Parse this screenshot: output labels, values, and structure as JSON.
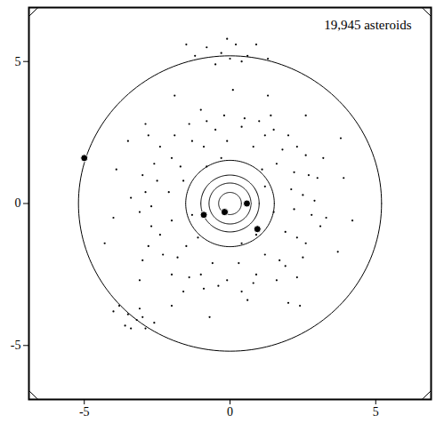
{
  "chart_data": {
    "type": "scatter",
    "title": "19,945 asteroids",
    "xlim": [
      -6.9,
      6.9
    ],
    "ylim": [
      -6.9,
      6.9
    ],
    "xticks": [
      -5,
      0,
      5
    ],
    "yticks": [
      -5,
      0,
      5
    ],
    "grid": false,
    "orbits": [
      0.39,
      0.72,
      1.0,
      1.52,
      5.2,
      9.54
    ],
    "series": [
      {
        "type": "scatter",
        "marker": "point",
        "color": "#000000",
        "x": [
          2.5,
          2.2,
          1.8,
          1.2,
          0.4,
          -0.5,
          -1.3,
          -2.0,
          -2.5,
          -2.7,
          -2.4,
          -1.8,
          -1.0,
          -0.1,
          0.9,
          1.7,
          2.3,
          2.8,
          3.0,
          2.6,
          2.0,
          1.0,
          -0.2,
          -1.4,
          -2.4,
          -3.0,
          -3.1,
          -2.8,
          -2.0,
          -0.9,
          0.4,
          1.6,
          2.5,
          3.1,
          2.1,
          1.6,
          0.8,
          -0.1,
          -0.9,
          -1.7,
          -2.1,
          -2.0,
          -1.5,
          -0.6,
          0.3,
          1.2,
          1.9,
          2.2,
          2.7,
          2.3,
          1.5,
          0.5,
          -0.8,
          -1.9,
          -2.6,
          -2.9,
          -2.7,
          -2.3,
          -1.4,
          -0.4,
          0.8,
          1.9,
          2.6,
          2.9,
          3.2,
          1.4,
          -1.0,
          -2.8,
          -3.4,
          -3.0,
          -1.6,
          0.6,
          2.3,
          3.3,
          3.9,
          2.6,
          0.1,
          -2.9,
          -4.0,
          -3.1,
          -0.7,
          2.0,
          3.7,
          1.3,
          -3.9,
          -2.0,
          -0.3,
          0.2,
          -0.8,
          0.6,
          -0.1,
          0.4,
          -1.2,
          0.9,
          -0.5,
          0.0,
          -1.5,
          1.3,
          -3.2,
          -3.5,
          -2.9,
          -3.8,
          -3.0,
          -3.4,
          -2.6,
          -4.0,
          -3.6,
          -3.1,
          1.2,
          -0.8,
          -1.3,
          0.4,
          1.5,
          -0.3,
          1.1,
          -1.6,
          0.9,
          -1.1,
          3.8,
          -3.5,
          4.2,
          -1.9,
          2.4,
          -4.3
        ],
        "y": [
          0.3,
          1.1,
          1.9,
          2.4,
          2.7,
          2.6,
          2.2,
          1.6,
          0.8,
          -0.1,
          -1.1,
          -1.9,
          -2.5,
          -2.7,
          -2.5,
          -2.0,
          -1.2,
          -0.4,
          0.9,
          1.7,
          2.4,
          2.9,
          3.1,
          2.8,
          2.0,
          1.0,
          -0.3,
          -1.5,
          -2.5,
          -3.0,
          -3.1,
          -2.7,
          -1.9,
          -0.8,
          0.5,
          1.4,
          2.0,
          2.2,
          2.0,
          1.3,
          0.4,
          -0.6,
          -1.5,
          -2.1,
          -2.1,
          -1.8,
          -1.0,
          -0.2,
          1.0,
          2.0,
          2.6,
          3.0,
          2.9,
          2.4,
          1.4,
          0.4,
          -0.8,
          -1.8,
          -2.6,
          -2.9,
          -2.8,
          -2.2,
          -1.4,
          0.1,
          1.6,
          3.1,
          3.3,
          2.4,
          0.2,
          -2.0,
          -3.1,
          -3.4,
          -2.6,
          -0.5,
          0.9,
          3.1,
          4.0,
          2.8,
          -0.5,
          -2.7,
          -4.0,
          -3.5,
          -1.7,
          3.8,
          1.2,
          -3.6,
          5.3,
          5.6,
          5.5,
          5.2,
          5.8,
          5.0,
          5.2,
          5.6,
          4.9,
          5.1,
          5.6,
          5.1,
          -4.1,
          -3.9,
          -4.4,
          -3.6,
          -4.0,
          -4.4,
          -4.2,
          -3.8,
          -4.3,
          -3.7,
          0.6,
          1.3,
          -0.4,
          -1.4,
          -0.3,
          1.6,
          1.2,
          0.8,
          -1.1,
          -1.2,
          2.3,
          2.2,
          -0.6,
          3.8,
          -3.6,
          -1.4
        ]
      },
      {
        "type": "scatter",
        "marker": "circle",
        "color": "#000000",
        "x": [
          -5.0,
          -0.9,
          0.58,
          0.94,
          -0.18
        ],
        "y": [
          1.6,
          -0.4,
          0.0,
          -0.9,
          -0.3
        ]
      }
    ]
  }
}
